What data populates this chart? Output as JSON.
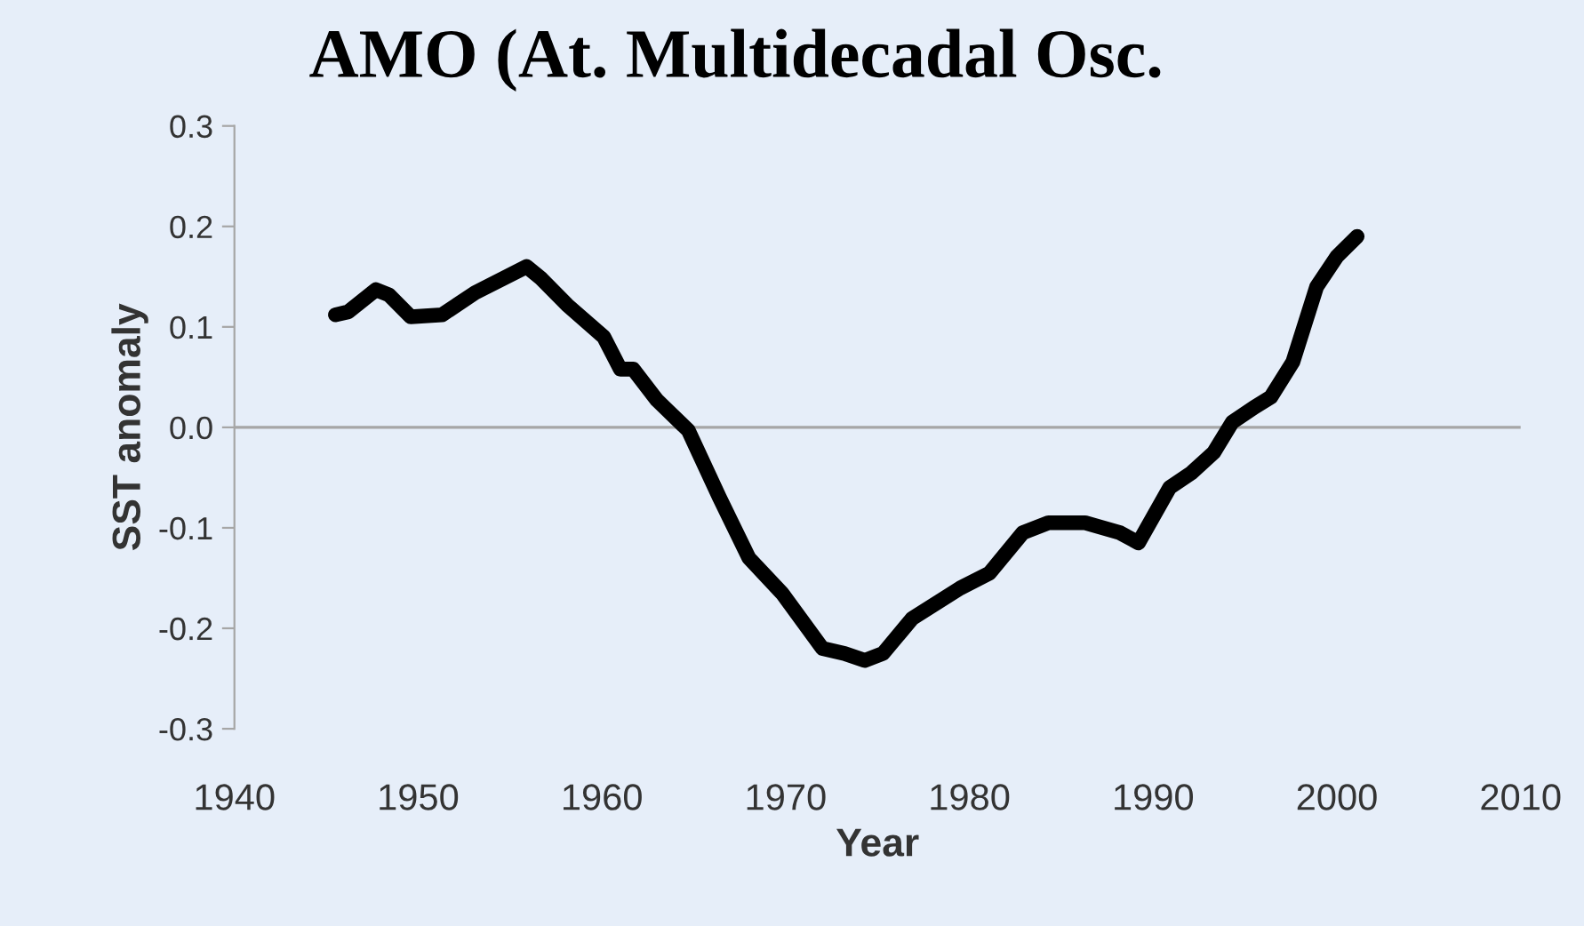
{
  "chart_data": {
    "type": "line",
    "title": "AMO (At. Multidecadal Osc.",
    "xlabel": "Year",
    "ylabel": "SST anomaly",
    "x": [
      1945.5,
      1946.2,
      1947.7,
      1948.4,
      1949.6,
      1951.3,
      1953.1,
      1955.9,
      1956.7,
      1958.1,
      1960.1,
      1961.0,
      1961.7,
      1963.0,
      1964.7,
      1966.4,
      1968.0,
      1969.8,
      1972.0,
      1973.2,
      1974.3,
      1975.3,
      1976.9,
      1979.5,
      1981.1,
      1982.9,
      1984.3,
      1986.3,
      1988.2,
      1989.2,
      1990.9,
      1992.1,
      1993.3,
      1994.3,
      1995.5,
      1996.4,
      1997.6,
      1998.9,
      2000.0,
      2001.1
    ],
    "series": [
      {
        "color": "#000000",
        "values": [
          0.112,
          0.115,
          0.137,
          0.132,
          0.11,
          0.112,
          0.134,
          0.16,
          0.148,
          0.122,
          0.09,
          0.058,
          0.058,
          0.027,
          -0.003,
          -0.07,
          -0.13,
          -0.165,
          -0.22,
          -0.225,
          -0.232,
          -0.225,
          -0.19,
          -0.16,
          -0.145,
          -0.105,
          -0.095,
          -0.095,
          -0.105,
          -0.115,
          -0.06,
          -0.045,
          -0.025,
          0.005,
          0.02,
          0.03,
          0.065,
          0.14,
          0.17,
          0.19
        ]
      }
    ],
    "xlim": [
      1940,
      2010
    ],
    "xticks": [
      1940,
      1950,
      1960,
      1970,
      1980,
      1990,
      2000,
      2010
    ],
    "ylim": [
      -0.3,
      0.3
    ],
    "yticks": [
      {
        "value": -0.3,
        "label": "-0.3"
      },
      {
        "value": -0.2,
        "label": "-0.2"
      },
      {
        "value": -0.1,
        "label": "-0.1"
      },
      {
        "value": 0.0,
        "label": "0.0"
      },
      {
        "value": 0.1,
        "label": "0.1"
      },
      {
        "value": 0.2,
        "label": "0.2"
      },
      {
        "value": 0.3,
        "label": "0.3"
      }
    ],
    "ref_lines": [
      {
        "axis": "y",
        "value": 0,
        "color": "#a6a6a6"
      }
    ],
    "grid": false,
    "legend": false,
    "marker": "none",
    "line_style": "solid"
  }
}
